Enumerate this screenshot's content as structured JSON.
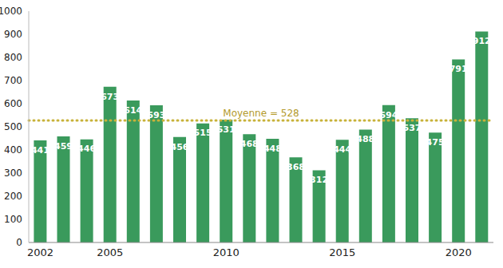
{
  "chart_data": {
    "type": "bar",
    "categories": [
      "2002",
      null,
      null,
      "2005",
      null,
      null,
      null,
      null,
      "2010",
      null,
      null,
      null,
      null,
      "2015",
      null,
      null,
      null,
      null,
      "2020",
      null
    ],
    "values": [
      441,
      459,
      446,
      673,
      614,
      593,
      456,
      515,
      531,
      468,
      448,
      368,
      312,
      444,
      488,
      594,
      537,
      475,
      791,
      912
    ],
    "color": "#3a9a5c",
    "ylim": [
      0,
      1000
    ],
    "yticks": [
      0,
      100,
      200,
      300,
      400,
      500,
      600,
      700,
      800,
      900,
      1000
    ],
    "grid": false,
    "data_labels": true,
    "annotations": [
      {
        "text": "Moyenne = 528",
        "y": 528,
        "color": "#c8b23a"
      }
    ]
  }
}
